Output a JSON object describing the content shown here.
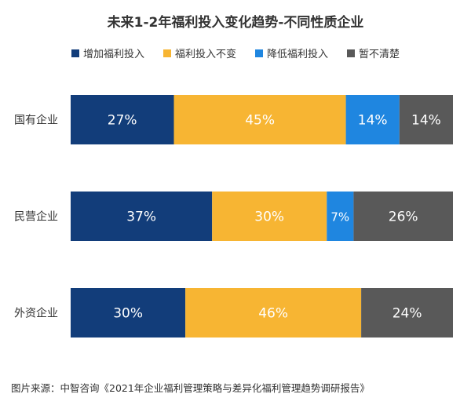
{
  "title": "未来1-2年福利投入变化趋势-不同性质企业",
  "source": "图片来源：中智咨询《2021年企业福利管理策略与差异化福利管理趋势调研报告》",
  "chart_data": {
    "type": "bar",
    "orientation": "horizontal",
    "stacked": true,
    "percent_stacked": true,
    "categories": [
      "国有企业",
      "民营企业",
      "外资企业"
    ],
    "series": [
      {
        "name": "增加福利投入",
        "color": "#123d7a",
        "values": [
          27,
          37,
          30
        ],
        "labels": [
          "27%",
          "37%",
          "30%"
        ]
      },
      {
        "name": "福利投入不变",
        "color": "#f7b533",
        "values": [
          45,
          30,
          46
        ],
        "labels": [
          "45%",
          "30%",
          "46%"
        ]
      },
      {
        "name": "降低福利投入",
        "color": "#1f86e0",
        "values": [
          14,
          7,
          0
        ],
        "labels": [
          "14%",
          "7%",
          ""
        ]
      },
      {
        "name": "暂不清楚",
        "color": "#595959",
        "values": [
          14,
          26,
          24
        ],
        "labels": [
          "14%",
          "26%",
          "24%"
        ]
      }
    ],
    "xlim": [
      0,
      100
    ],
    "grid": false,
    "legend_position": "top"
  }
}
